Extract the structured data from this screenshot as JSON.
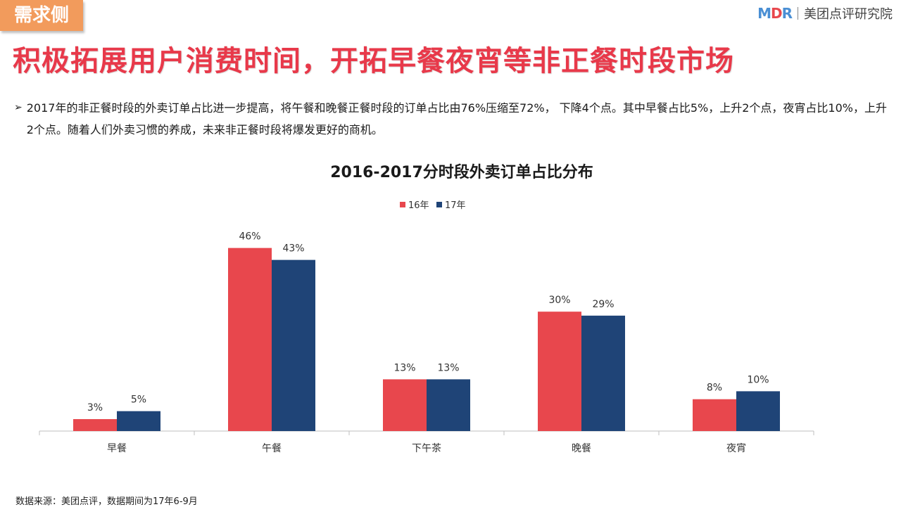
{
  "tag": "需求侧",
  "brand": {
    "logo_left": "M",
    "logo_mid": "D",
    "logo_right": "R",
    "name": "美团点评研究院"
  },
  "headline": "积极拓展用户消费时间，开拓早餐夜宵等非正餐时段市场",
  "bullet": {
    "marker": "➢",
    "text": "2017年的非正餐时段的外卖订单占比进一步提高，将午餐和晚餐正餐时段的订单占比由76%压缩至72%， 下降4个点。其中早餐占比5%，上升2个点，夜宵占比10%，上升2个点。随着人们外卖习惯的养成，未来非正餐时段将爆发更好的商机。"
  },
  "colors": {
    "series16": "#e8474d",
    "series17": "#1f4477",
    "tag": "#f29b5c",
    "headline": "#e8394a"
  },
  "chart_data": {
    "type": "bar",
    "title": "2016-2017分时段外卖订单占比分布",
    "categories": [
      "早餐",
      "午餐",
      "下午茶",
      "晚餐",
      "夜宵"
    ],
    "series": [
      {
        "name": "16年",
        "values": [
          3,
          46,
          13,
          30,
          8
        ],
        "labels": [
          "3%",
          "46%",
          "13%",
          "30%",
          "8%"
        ]
      },
      {
        "name": "17年",
        "values": [
          5,
          43,
          13,
          29,
          10
        ],
        "labels": [
          "5%",
          "43%",
          "13%",
          "29%",
          "10%"
        ]
      }
    ],
    "unit": "%",
    "legend": "top-center",
    "grid": false,
    "ylim": [
      0,
      50
    ]
  },
  "source": "数据来源：美团点评，数据期间为17年6-9月"
}
